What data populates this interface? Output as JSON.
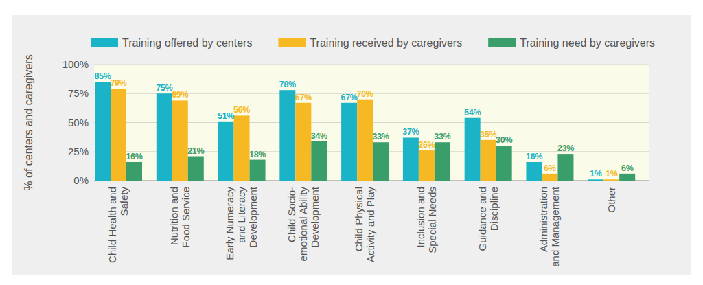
{
  "chart_data": {
    "type": "bar",
    "y_label": "% of centers and caregivers",
    "categories": [
      "Child Health and Safety",
      "Nutrition and Food Service",
      "Early Numeracy and Literacy Development",
      "Child Socio-emotional Ability Development",
      "Child Physical Activity and Play",
      "Inclusion and Special Needs",
      "Guidance and Discipline",
      "Administration and Management",
      "Other"
    ],
    "series": [
      {
        "name": "Training offered by centers",
        "color": "#1bb3c8",
        "values": [
          85,
          75,
          51,
          78,
          67,
          37,
          54,
          16,
          1
        ],
        "value_labels": [
          "85%",
          "75%",
          "51%",
          "78%",
          "67%",
          "37%",
          "54%",
          "16%",
          "1%"
        ]
      },
      {
        "name": "Training received by caregivers",
        "color": "#f6b924",
        "values": [
          79,
          69,
          56,
          67,
          70,
          26,
          35,
          6,
          1
        ],
        "value_labels": [
          "79%",
          "69%",
          "56%",
          "67%",
          "70%",
          "26%",
          "35%",
          "6%",
          "1%"
        ]
      },
      {
        "name": "Training need by caregivers",
        "color": "#3a9e6a",
        "values": [
          16,
          21,
          18,
          34,
          33,
          33,
          30,
          23,
          6
        ],
        "value_labels": [
          "16%",
          "21%",
          "18%",
          "34%",
          "33%",
          "33%",
          "30%",
          "23%",
          "6%"
        ]
      }
    ],
    "ylim": [
      0,
      100
    ],
    "yticks": [
      {
        "value": 0,
        "label": "0%"
      },
      {
        "value": 25,
        "label": "25%"
      },
      {
        "value": 50,
        "label": "50%"
      },
      {
        "value": 75,
        "label": "75%"
      },
      {
        "value": 100,
        "label": "100%"
      }
    ],
    "grid": true,
    "legend": "top",
    "data_labels": true
  }
}
